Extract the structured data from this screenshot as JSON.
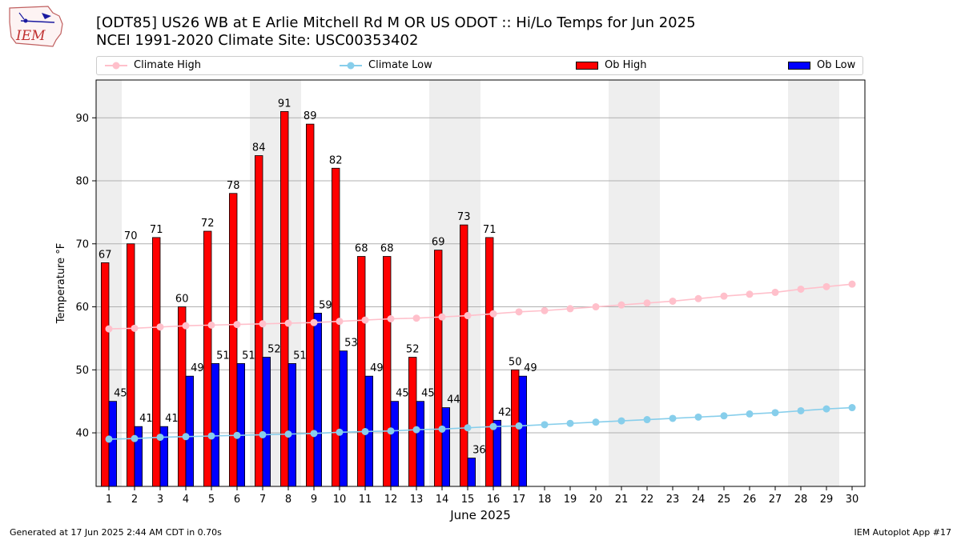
{
  "title_line1": "[ODT85] US26 WB at E Arlie Mitchell Rd M OR US ODOT :: Hi/Lo Temps for Jun 2025",
  "title_line2": "NCEI 1991-2020 Climate Site: USC00353402",
  "logo_text": "IEM",
  "legend": {
    "climate_high": "Climate High",
    "climate_low": "Climate Low",
    "ob_high": "Ob High",
    "ob_low": "Ob Low"
  },
  "footer_left": "Generated at 17 Jun 2025 2:44 AM CDT in 0.70s",
  "footer_right": "IEM Autoplot App #17",
  "colors": {
    "ob_high": "#ff0000",
    "ob_low": "#0000ff",
    "climate_high": "#ffc0cb",
    "climate_low": "#87ceeb",
    "weekend_shade": "#eeeeee",
    "grid": "#b0b0b0"
  },
  "chart_data": {
    "type": "bar",
    "xlabel": "June 2025",
    "ylabel": "Temperature °F",
    "ylim": [
      31.5,
      96
    ],
    "yticks": [
      40,
      50,
      60,
      70,
      80,
      90
    ],
    "grid": "horizontal",
    "legend_position": "top",
    "days": [
      1,
      2,
      3,
      4,
      5,
      6,
      7,
      8,
      9,
      10,
      11,
      12,
      13,
      14,
      15,
      16,
      17,
      18,
      19,
      20,
      21,
      22,
      23,
      24,
      25,
      26,
      27,
      28,
      29,
      30
    ],
    "weekend_days": [
      1,
      7,
      8,
      14,
      15,
      21,
      22,
      28,
      29
    ],
    "series": [
      {
        "name": "Ob High",
        "kind": "bar",
        "values": [
          67,
          70,
          71,
          60,
          72,
          78,
          84,
          91,
          89,
          82,
          68,
          68,
          52,
          69,
          73,
          71,
          50
        ]
      },
      {
        "name": "Ob Low",
        "kind": "bar",
        "values": [
          45,
          41,
          41,
          49,
          51,
          51,
          52,
          51,
          59,
          53,
          49,
          45,
          45,
          44,
          36,
          42,
          49
        ]
      },
      {
        "name": "Climate High",
        "kind": "line",
        "values": [
          56.5,
          56.6,
          56.8,
          57.0,
          57.1,
          57.2,
          57.3,
          57.4,
          57.5,
          57.7,
          57.9,
          58.1,
          58.2,
          58.4,
          58.6,
          58.9,
          59.2,
          59.4,
          59.7,
          60.0,
          60.3,
          60.6,
          60.9,
          61.3,
          61.7,
          62.0,
          62.3,
          62.8,
          63.2,
          63.6
        ]
      },
      {
        "name": "Climate Low",
        "kind": "line",
        "values": [
          39.0,
          39.1,
          39.3,
          39.4,
          39.5,
          39.6,
          39.7,
          39.8,
          39.9,
          40.1,
          40.2,
          40.3,
          40.5,
          40.6,
          40.8,
          41.0,
          41.1,
          41.3,
          41.5,
          41.7,
          41.9,
          42.1,
          42.3,
          42.5,
          42.7,
          43.0,
          43.2,
          43.5,
          43.8,
          44.0
        ]
      }
    ]
  }
}
